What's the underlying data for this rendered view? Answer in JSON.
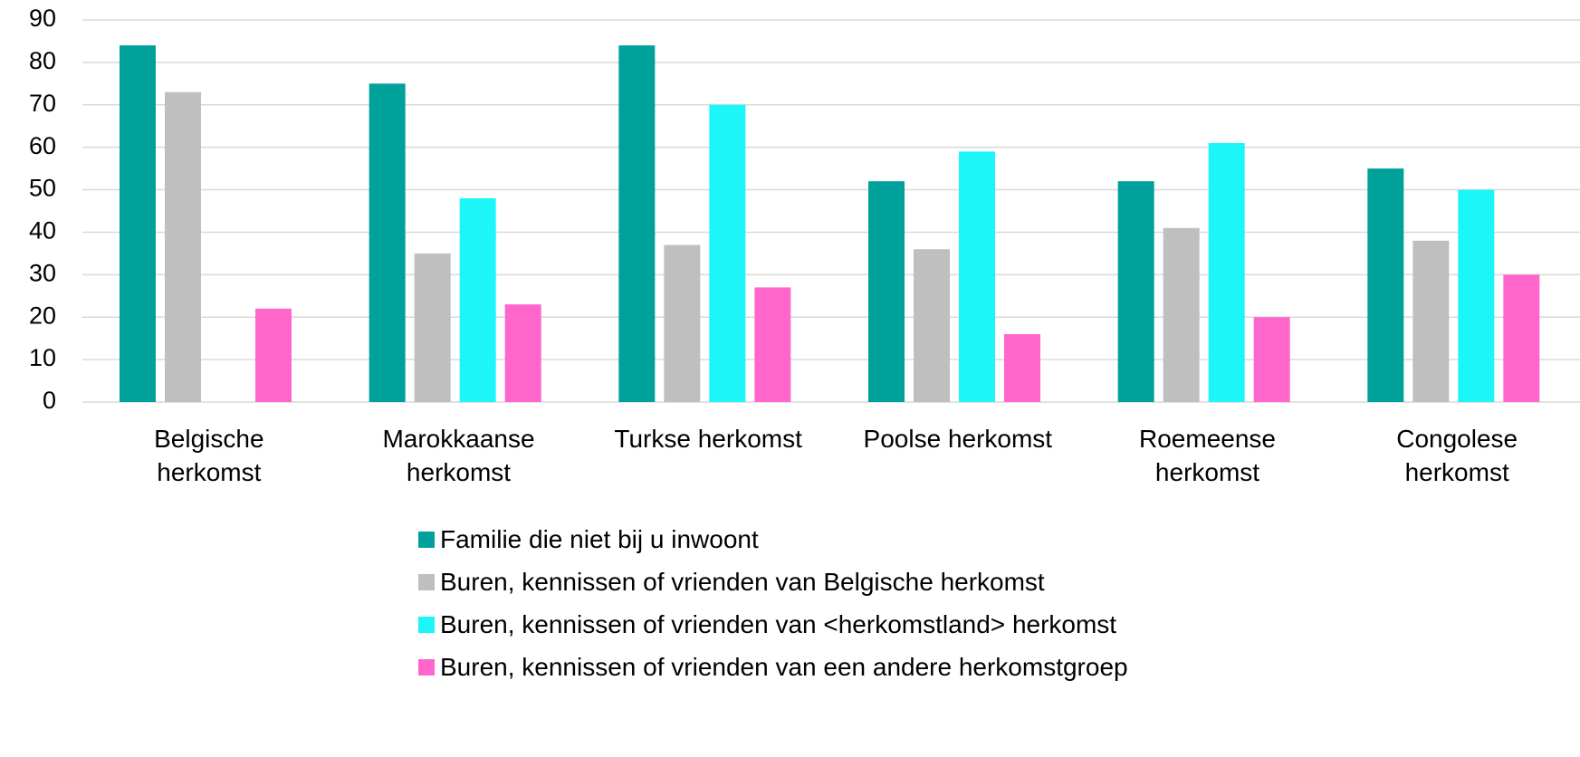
{
  "chart_data": {
    "type": "bar",
    "categories": [
      "Belgische herkomst",
      "Marokkaanse herkomst",
      "Turkse herkomst",
      "Poolse herkomst",
      "Roemeense herkomst",
      "Congolese herkomst"
    ],
    "series": [
      {
        "name": "Familie die niet bij u inwoont",
        "color": "#00a19a",
        "values": [
          84,
          75,
          84,
          52,
          52,
          55
        ]
      },
      {
        "name": "Buren, kennissen of vrienden van Belgische herkomst",
        "color": "#bfbfbf",
        "values": [
          73,
          35,
          37,
          36,
          41,
          38
        ]
      },
      {
        "name": "Buren, kennissen of vrienden van <herkomstland> herkomst",
        "color": "#1cf6f9",
        "values": [
          null,
          48,
          70,
          59,
          61,
          50
        ]
      },
      {
        "name": "Buren, kennissen of vrienden van een andere herkomstgroep",
        "color": "#ff66cc",
        "values": [
          22,
          23,
          27,
          16,
          20,
          30
        ]
      }
    ],
    "ylim": [
      0,
      90
    ],
    "yticks": [
      0,
      10,
      20,
      30,
      40,
      50,
      60,
      70,
      80,
      90
    ],
    "grid": true,
    "legend": "bottom"
  }
}
